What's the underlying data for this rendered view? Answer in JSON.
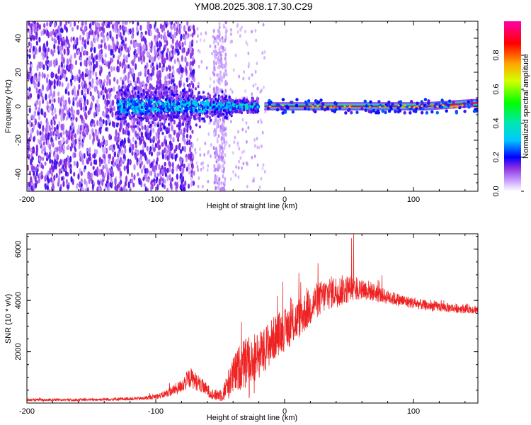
{
  "title": "YM08.2025.308.17.30.C29",
  "colors": {
    "snr_line": "#ee2222",
    "axis": "#000000",
    "background": "#ffffff"
  },
  "chart_data": [
    {
      "type": "heatmap",
      "name": "spectrogram",
      "xlabel": "Height of straight line (km)",
      "ylabel": "Frequency (Hz)",
      "xlim": [
        -200,
        150
      ],
      "ylim": [
        -50,
        50
      ],
      "xticks": [
        -200,
        -100,
        0,
        100
      ],
      "xtick_labels": [
        "-200",
        "-100",
        "0",
        "100"
      ],
      "yticks": [
        -40,
        -20,
        0,
        20,
        40
      ],
      "ytick_labels": [
        "-40",
        "-20",
        "0",
        "20",
        "40"
      ],
      "colorbar": {
        "label": "Normalized spectral amplitude",
        "range": [
          0,
          1
        ],
        "ticks": [
          0.0,
          0.2,
          0.4,
          0.6,
          0.8
        ],
        "tick_labels": [
          "0.0",
          "0.2",
          "0.4",
          "0.6",
          "0.8"
        ]
      },
      "features": {
        "noise_region_x": [
          -200,
          -75
        ],
        "faint_noise_x": [
          -55,
          -45
        ],
        "signal_start_x": -130,
        "dense_cluster_x": [
          -115,
          -20
        ],
        "carrier_line_x": [
          -15,
          150
        ],
        "carrier_freq_hz": 0,
        "carrier_end_freq_hz": 2
      }
    },
    {
      "type": "line",
      "name": "snr",
      "xlabel": "Height of straight line (km)",
      "ylabel": "SNR (10 * v/v)",
      "xlim": [
        -200,
        150
      ],
      "ylim": [
        0,
        6600
      ],
      "xticks": [
        -200,
        -100,
        0,
        100
      ],
      "xtick_labels": [
        "-200",
        "-100",
        "0",
        "100"
      ],
      "yticks": [
        2000,
        4000,
        6000
      ],
      "ytick_labels": [
        "2000",
        "4000",
        "6000"
      ],
      "envelope_x": [
        -200,
        -150,
        -110,
        -95,
        -82,
        -73,
        -65,
        -55,
        -48,
        -42,
        -35,
        -28,
        -20,
        -12,
        -5,
        5,
        15,
        25,
        35,
        45,
        55,
        65,
        75,
        90,
        110,
        130,
        150
      ],
      "envelope_y": [
        120,
        130,
        180,
        300,
        600,
        1000,
        700,
        300,
        350,
        900,
        1400,
        1600,
        1900,
        2300,
        2700,
        3000,
        3500,
        4000,
        4300,
        4400,
        4500,
        4400,
        4200,
        4000,
        3800,
        3700,
        3650
      ],
      "noise_amplitude": [
        50,
        50,
        70,
        120,
        250,
        400,
        300,
        200,
        300,
        700,
        900,
        1000,
        950,
        900,
        850,
        800,
        800,
        700,
        650,
        600,
        500,
        400,
        300,
        250,
        200,
        180,
        170
      ]
    }
  ]
}
